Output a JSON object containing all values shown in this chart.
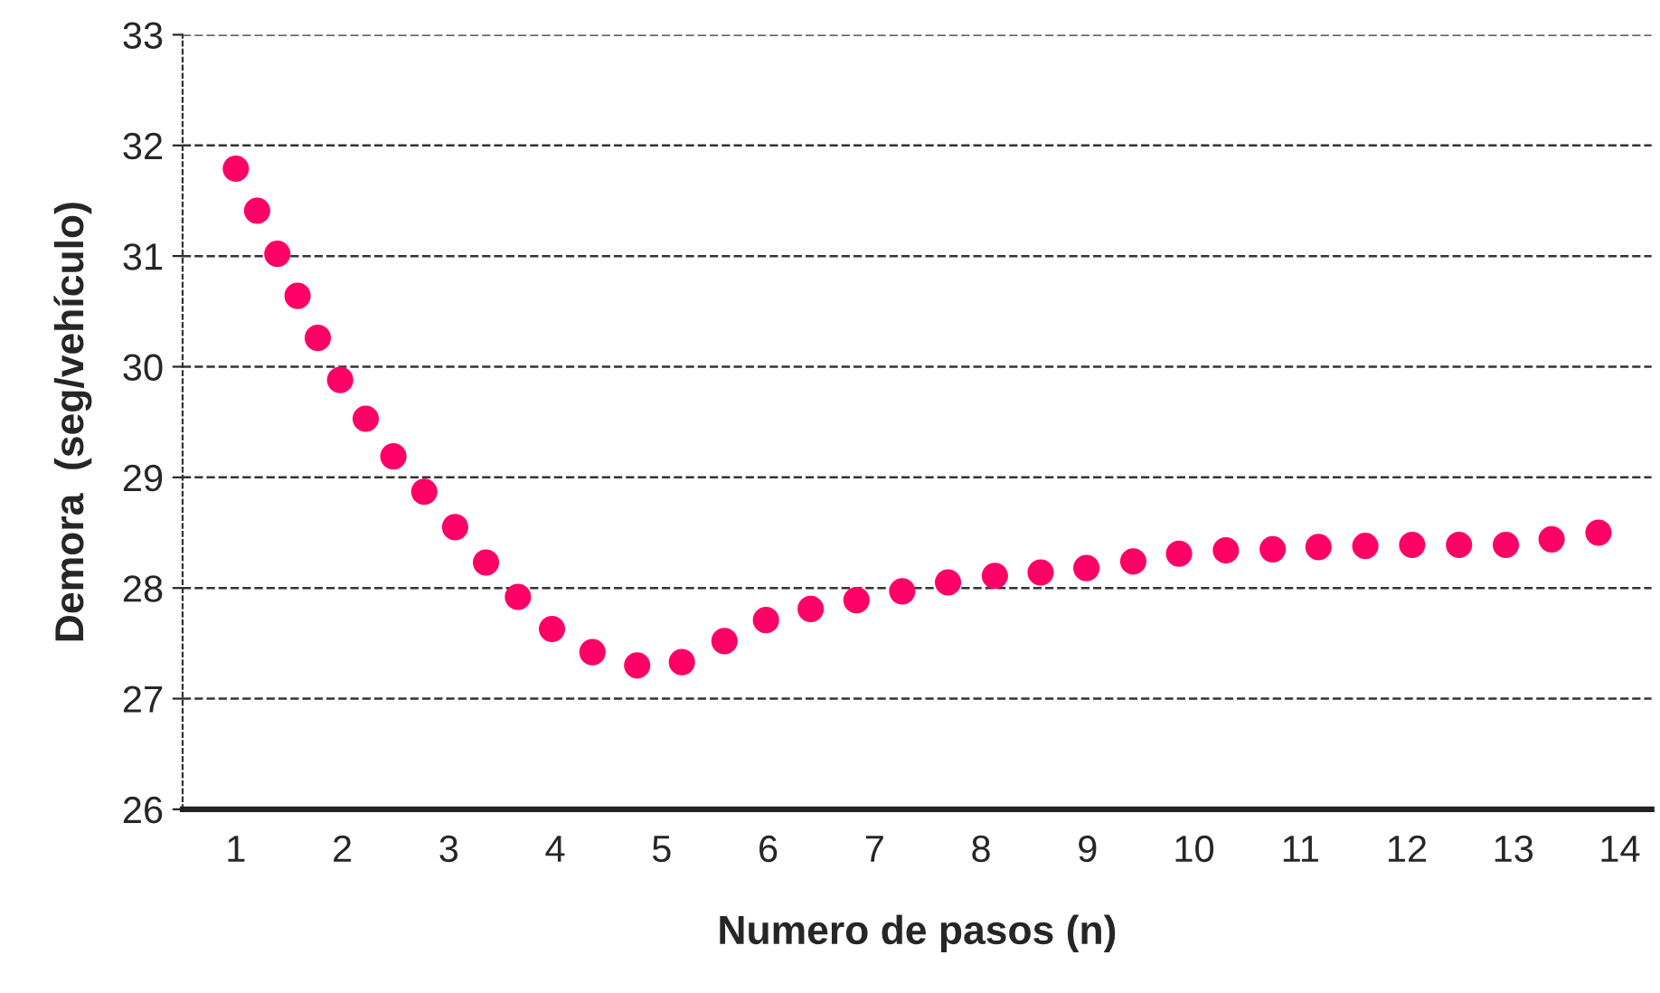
{
  "chart_data": {
    "type": "scatter",
    "xlabel": "Numero de pasos (n)",
    "ylabel": "Demora  (seg/vehículo)",
    "x": [
      1.0,
      1.2,
      1.39,
      1.58,
      1.77,
      1.98,
      2.22,
      2.48,
      2.77,
      3.06,
      3.35,
      3.65,
      3.97,
      4.35,
      4.77,
      5.19,
      5.59,
      5.98,
      6.4,
      6.83,
      7.26,
      7.69,
      8.13,
      8.56,
      8.99,
      9.43,
      9.86,
      10.3,
      10.74,
      11.17,
      11.61,
      12.05,
      12.49,
      12.93,
      13.36,
      13.8
    ],
    "series": [
      {
        "color": "#ff0066",
        "values": [
          31.79,
          31.41,
          31.02,
          30.64,
          30.26,
          29.88,
          29.53,
          29.19,
          28.87,
          28.55,
          28.23,
          27.92,
          27.63,
          27.42,
          27.3,
          27.33,
          27.52,
          27.71,
          27.81,
          27.89,
          27.97,
          28.05,
          28.11,
          28.14,
          28.18,
          28.24,
          28.31,
          28.34,
          28.35,
          28.37,
          28.38,
          28.39,
          28.39,
          28.39,
          28.44,
          28.5
        ]
      }
    ],
    "xlim": [
      0.5,
      14.3
    ],
    "xticks": [
      1,
      2,
      3,
      4,
      5,
      6,
      7,
      8,
      9,
      10,
      11,
      12,
      13,
      14
    ],
    "ylim": [
      26,
      33
    ],
    "yticks": [
      26,
      27,
      28,
      29,
      30,
      31,
      32,
      33
    ],
    "grid": "y",
    "marker": "circle"
  }
}
